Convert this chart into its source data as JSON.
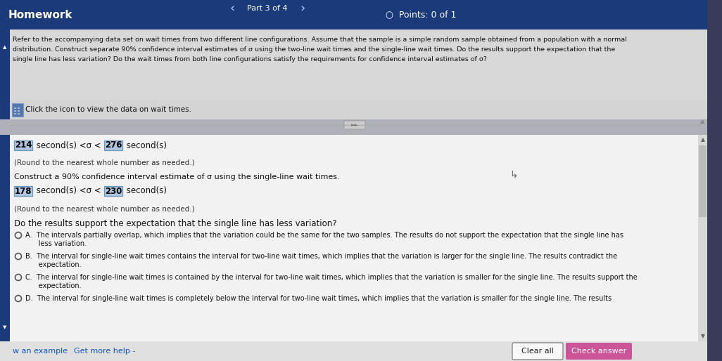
{
  "bg_color": "#b0b0b8",
  "header_bg": "#1a3a7a",
  "header_text_color": "#ffffff",
  "header_title": "Homework",
  "header_part": "Part 3 of 4",
  "header_points": "Points: 0 of 1",
  "intro_line1": "Refer to the accompanying data set on wait times from two different line configurations. Assume that the sample is a simple random sample obtained from a population with a normal",
  "intro_line2": "distribution. Construct separate 90% confidence interval estimates of σ using the two-line wait times and the single-line wait times. Do the results support the expectation that the",
  "intro_line3": "single line has less variation? Do the wait times from both line configurations satisfy the requirements for confidence interval estimates of σ?",
  "click_icon_text": "Click the icon to view the data on wait times.",
  "two_line_label": "214",
  "two_line_unit1": " second(s) <σ <",
  "two_line_val2": "276",
  "two_line_unit2": " second(s)",
  "two_line_round": "(Round to the nearest whole number as needed.)",
  "single_line_prompt": "Construct a 90% confidence interval estimate of σ using the single-line wait times.",
  "single_line_label": "178",
  "single_line_unit1": " second(s) <σ <",
  "single_line_val2": "230",
  "single_line_unit2": " second(s)",
  "single_line_round": "(Round to the nearest whole number as needed.)",
  "question": "Do the results support the expectation that the single line has less variation?",
  "option_A1": "A.  The intervals partially overlap, which implies that the variation could be the same for the two samples. The results do not support the expectation that the single line has",
  "option_A2": "      less variation.",
  "option_B1": "B.  The interval for single-line wait times contains the interval for two-line wait times, which implies that the variation is larger for the single line. The results contradict the",
  "option_B2": "      expectation.",
  "option_C1": "C.  The interval for single-line wait times is contained by the interval for two-line wait times, which implies that the variation is smaller for the single line. The results support the",
  "option_C2": "      expectation.",
  "option_D1": "D.  The interval for single-line wait times is completely below the interval for two-line wait times, which implies that the variation is smaller for the single line. The results",
  "footer_left1": "w an example",
  "footer_left2": "Get more help -",
  "footer_btn1": "Clear all",
  "footer_btn2": "Check answer",
  "highlight_color": "#b0c4de",
  "highlight_border": "#6699bb",
  "btn1_bg": "#f8f8f8",
  "btn1_border": "#888888",
  "btn2_bg": "#cc5599",
  "left_strip_color": "#1a3a7a",
  "right_edge_color": "#3a3a5a",
  "content_bg": "#ebebeb",
  "upper_bg": "#d8d8d8",
  "scroll_area_bg": "#f2f2f2",
  "footer_bg": "#e0e0e0",
  "separator_color": "#aaaaaa",
  "scroll_bar_color": "#bbbbbb",
  "cursor_color": "#666666"
}
